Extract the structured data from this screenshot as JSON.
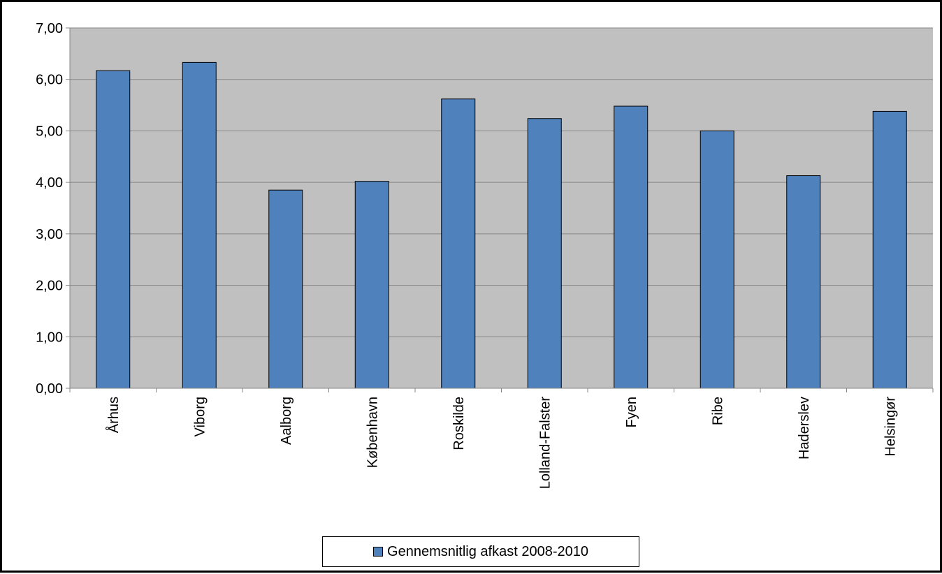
{
  "chart_data": {
    "type": "bar",
    "categories": [
      "Århus",
      "Viborg",
      "Aalborg",
      "København",
      "Roskilde",
      "Lolland-Falster",
      "Fyen",
      "Ribe",
      "Haderslev",
      "Helsingør"
    ],
    "series": [
      {
        "name": "Gennemsnitlig afkast 2008-2010",
        "values": [
          6.17,
          6.33,
          3.85,
          4.02,
          5.62,
          5.24,
          5.48,
          5.0,
          4.13,
          5.38
        ],
        "color": "#4f81bd"
      }
    ],
    "y_tick_labels": [
      "0,00",
      "1,00",
      "2,00",
      "3,00",
      "4,00",
      "5,00",
      "6,00",
      "7,00"
    ],
    "ylim": [
      0,
      7
    ],
    "grid": true,
    "plot_background": "#c0c0c0",
    "legend_position": "bottom",
    "title": "",
    "xlabel": "",
    "ylabel": ""
  }
}
